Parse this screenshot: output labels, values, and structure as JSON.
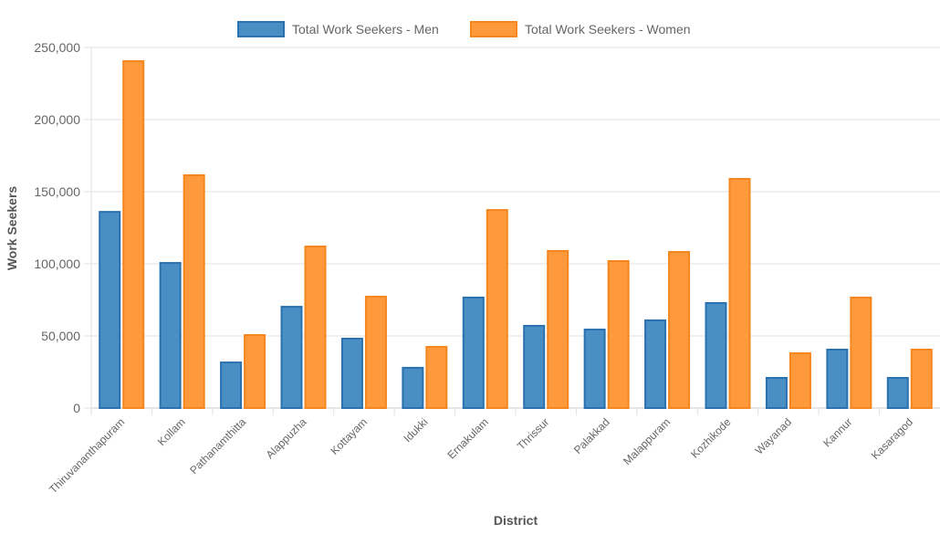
{
  "chart_data": {
    "type": "bar",
    "xlabel": "District",
    "ylabel": "Work Seekers",
    "ylim": [
      0,
      250000
    ],
    "yticks": [
      "0",
      "50,000",
      "100,000",
      "150,000",
      "200,000",
      "250,000"
    ],
    "grid": true,
    "legend_position": "top",
    "categories": [
      "Thiruvananthapuram",
      "Kollam",
      "Pathanamthitta",
      "Alappuzha",
      "Kottayam",
      "Idukki",
      "Ernakulam",
      "Thrissur",
      "Palakkad",
      "Malappuram",
      "Kozhikode",
      "Wayanad",
      "Kannur",
      "Kasaragod"
    ],
    "series": [
      {
        "name": "Total Work Seekers - Men",
        "color": "#4a8fc4",
        "stroke": "#2a71b0",
        "values": [
          136000,
          100600,
          31600,
          70200,
          48100,
          27900,
          76600,
          57000,
          54400,
          60800,
          72800,
          20900,
          40500,
          20900
        ]
      },
      {
        "name": "Total Work Seekers - Women",
        "color": "#ff9a3c",
        "stroke": "#f5861f",
        "values": [
          240500,
          161400,
          50600,
          112000,
          77200,
          42400,
          137300,
          108900,
          101900,
          108200,
          158900,
          38000,
          76600,
          40500
        ]
      }
    ]
  }
}
